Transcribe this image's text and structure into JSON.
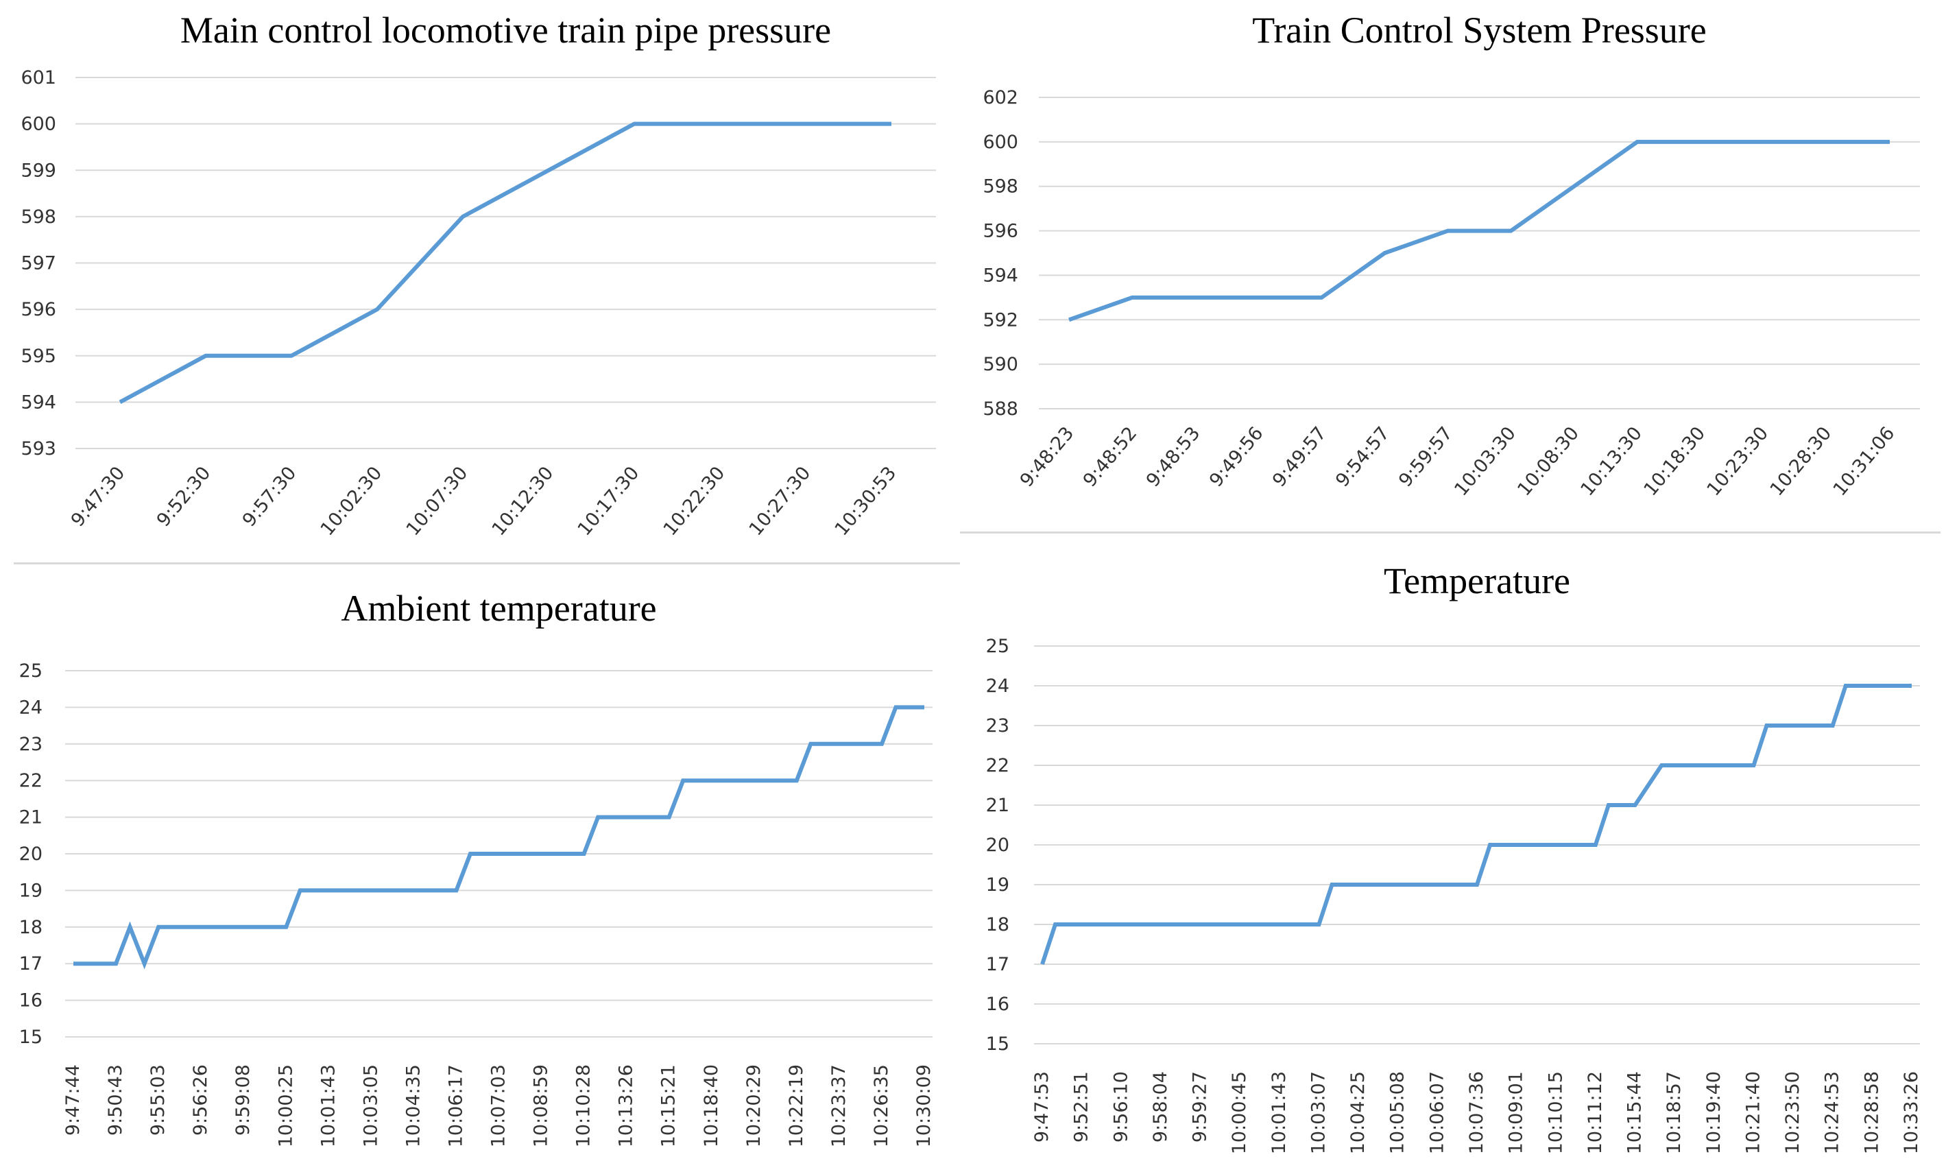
{
  "colors": {
    "line": "#5b9bd5",
    "grid": "#d9d9d9",
    "text": "#333333"
  },
  "chart_data": [
    {
      "type": "line",
      "title": "Main control locomotive train pipe pressure",
      "xlabel": "",
      "ylabel": "",
      "ylim": [
        593,
        601
      ],
      "yticks": [
        593,
        594,
        595,
        596,
        597,
        598,
        599,
        600,
        601
      ],
      "tick_labels": [
        "9:47:30",
        "9:52:30",
        "9:57:30",
        "10:02:30",
        "10:07:30",
        "10:12:30",
        "10:17:30",
        "10:22:30",
        "10:27:30",
        "10:30:53"
      ],
      "values": [
        594,
        595,
        595,
        596,
        598,
        599,
        600,
        600,
        600,
        600
      ],
      "grid": true
    },
    {
      "type": "line",
      "title": "Train Control System Pressure",
      "xlabel": "",
      "ylabel": "",
      "ylim": [
        588,
        602
      ],
      "yticks": [
        588,
        590,
        592,
        594,
        596,
        598,
        600,
        602
      ],
      "tick_labels": [
        "9:48:23",
        "9:48:52",
        "9:48:53",
        "9:49:56",
        "9:49:57",
        "9:54:57",
        "9:59:57",
        "10:03:30",
        "10:08:30",
        "10:13:30",
        "10:18:30",
        "10:23:30",
        "10:28:30",
        "10:31:06"
      ],
      "values": [
        592,
        593,
        593,
        593,
        593,
        595,
        596,
        596,
        598,
        600,
        600,
        600,
        600,
        600
      ],
      "grid": true
    },
    {
      "type": "line",
      "title": "Ambient temperature",
      "xlabel": "",
      "ylabel": "",
      "ylim": [
        15,
        25
      ],
      "yticks": [
        15,
        16,
        17,
        18,
        19,
        20,
        21,
        22,
        23,
        24,
        25
      ],
      "tick_labels": [
        "9:47:44",
        "9:50:43",
        "9:55:03",
        "9:56:26",
        "9:59:08",
        "10:00:25",
        "10:01:43",
        "10:03:05",
        "10:04:35",
        "10:06:17",
        "10:07:03",
        "10:08:59",
        "10:10:28",
        "10:13:26",
        "10:15:21",
        "10:18:40",
        "10:20:29",
        "10:22:19",
        "10:23:37",
        "10:26:35",
        "10:30:09"
      ],
      "x": [
        0,
        1,
        1.33,
        1.67,
        2,
        3,
        4,
        5,
        5.33,
        6,
        7,
        8,
        9,
        9.33,
        10,
        11,
        12,
        12.33,
        13,
        14,
        14.33,
        15,
        16,
        17,
        17.33,
        18,
        19,
        19.33,
        20
      ],
      "values": [
        17,
        17,
        18,
        17,
        18,
        18,
        18,
        18,
        19,
        19,
        19,
        19,
        19,
        20,
        20,
        20,
        20,
        21,
        21,
        21,
        22,
        22,
        22,
        22,
        23,
        23,
        23,
        24,
        24
      ],
      "grid": true
    },
    {
      "type": "line",
      "title": "Temperature",
      "xlabel": "",
      "ylabel": "",
      "ylim": [
        15,
        25
      ],
      "yticks": [
        15,
        16,
        17,
        18,
        19,
        20,
        21,
        22,
        23,
        24,
        25
      ],
      "tick_labels": [
        "9:47:53",
        "9:52:51",
        "9:56:10",
        "9:58:04",
        "9:59:27",
        "10:00:45",
        "10:01:43",
        "10:03:07",
        "10:04:25",
        "10:05:08",
        "10:06:07",
        "10:07:36",
        "10:09:01",
        "10:10:15",
        "10:11:12",
        "10:15:44",
        "10:18:57",
        "10:19:40",
        "10:21:40",
        "10:23:50",
        "10:24:53",
        "10:28:58",
        "10:33:26"
      ],
      "x": [
        0,
        0.33,
        1,
        2,
        3,
        4,
        5,
        6,
        7,
        7.33,
        8,
        9,
        10,
        11,
        11.33,
        12,
        13,
        14,
        14.33,
        15,
        15.67,
        16,
        17,
        18,
        18.33,
        19,
        20,
        20.33,
        21,
        22
      ],
      "values": [
        17,
        18,
        18,
        18,
        18,
        18,
        18,
        18,
        18,
        19,
        19,
        19,
        19,
        19,
        20,
        20,
        20,
        20,
        21,
        21,
        22,
        22,
        22,
        22,
        23,
        23,
        23,
        24,
        24,
        24
      ],
      "grid": true
    }
  ]
}
